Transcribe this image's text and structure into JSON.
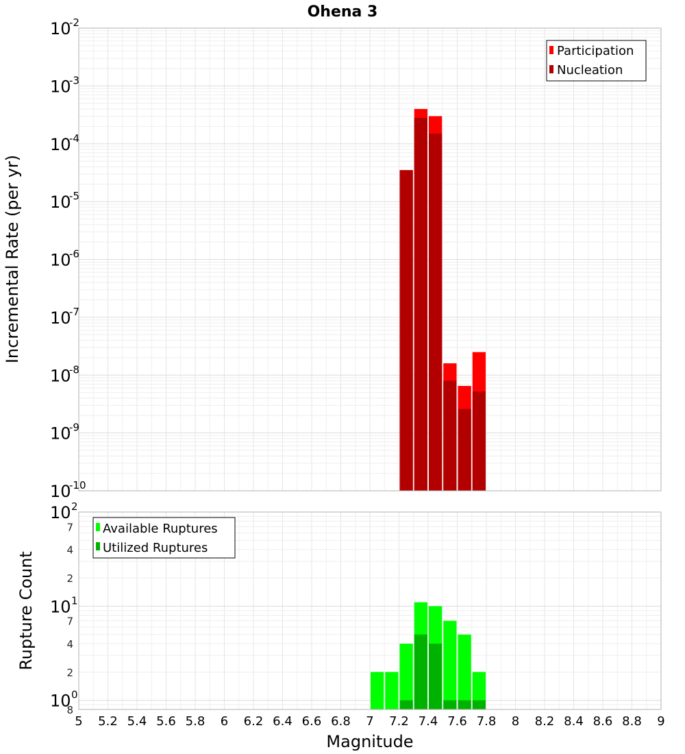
{
  "chart_data": [
    {
      "type": "bar",
      "title": "Ohena 3",
      "ylabel": "Incremental Rate (per yr)",
      "xlim": [
        5,
        9
      ],
      "ylim": [
        1e-10,
        0.01
      ],
      "yscale": "log",
      "grid": true,
      "bar_width": 0.1,
      "legend_position": "top-right",
      "y_major_ticks": [
        {
          "base": "10",
          "exp": "-2",
          "value": 0.01
        },
        {
          "base": "10",
          "exp": "-3",
          "value": 0.001
        },
        {
          "base": "10",
          "exp": "-4",
          "value": 0.0001
        },
        {
          "base": "10",
          "exp": "-5",
          "value": 1e-05
        },
        {
          "base": "10",
          "exp": "-6",
          "value": 1e-06
        },
        {
          "base": "10",
          "exp": "-7",
          "value": 1e-07
        },
        {
          "base": "10",
          "exp": "-8",
          "value": 1e-08
        },
        {
          "base": "10",
          "exp": "-9",
          "value": 1e-09
        },
        {
          "base": "10",
          "exp": "-10",
          "value": 1e-10
        }
      ],
      "x": [
        7.25,
        7.35,
        7.45,
        7.55,
        7.65,
        7.75
      ],
      "series": [
        {
          "name": "Participation",
          "color": "#ff0000",
          "values": [
            3.5e-05,
            0.0004,
            0.0003,
            1.6e-08,
            6.5e-09,
            2.5e-08
          ]
        },
        {
          "name": "Nucleation",
          "color": "#b20000",
          "values": [
            3.5e-05,
            0.00028,
            0.00015,
            8e-09,
            2.6e-09,
            5.2e-09
          ]
        }
      ]
    },
    {
      "type": "bar",
      "xlabel": "Magnitude",
      "ylabel": "Rupture Count",
      "xlim": [
        5,
        9
      ],
      "ylim": [
        0.8,
        100
      ],
      "yscale": "log",
      "grid": true,
      "bar_width": 0.1,
      "legend_position": "top-left",
      "x_ticks": [
        "5",
        "5.2",
        "5.4",
        "5.6",
        "5.8",
        "6",
        "6.2",
        "6.4",
        "6.6",
        "6.8",
        "7",
        "7.2",
        "7.4",
        "7.6",
        "7.8",
        "8",
        "8.2",
        "8.4",
        "8.6",
        "8.8",
        "9"
      ],
      "y_major_ticks": [
        {
          "base": "10",
          "exp": "2",
          "value": 100
        },
        {
          "base": "10",
          "exp": "1",
          "value": 10
        },
        {
          "base": "10",
          "exp": "0",
          "value": 1
        }
      ],
      "y_minor_ticks": [
        {
          "label": "7",
          "value": 70
        },
        {
          "label": "4",
          "value": 40
        },
        {
          "label": "2",
          "value": 20
        },
        {
          "label": "7",
          "value": 7
        },
        {
          "label": "4",
          "value": 4
        },
        {
          "label": "2",
          "value": 2
        },
        {
          "label": "8",
          "value": 0.8
        }
      ],
      "x": [
        7.05,
        7.15,
        7.25,
        7.35,
        7.45,
        7.55,
        7.65,
        7.75
      ],
      "series": [
        {
          "name": "Available Ruptures",
          "color": "#00ff00",
          "values": [
            2,
            2,
            4,
            11,
            10,
            7,
            5,
            2
          ]
        },
        {
          "name": "Utilized Ruptures",
          "color": "#00b200",
          "values": [
            0,
            0,
            1,
            5,
            4,
            1,
            1,
            1
          ]
        }
      ]
    }
  ]
}
